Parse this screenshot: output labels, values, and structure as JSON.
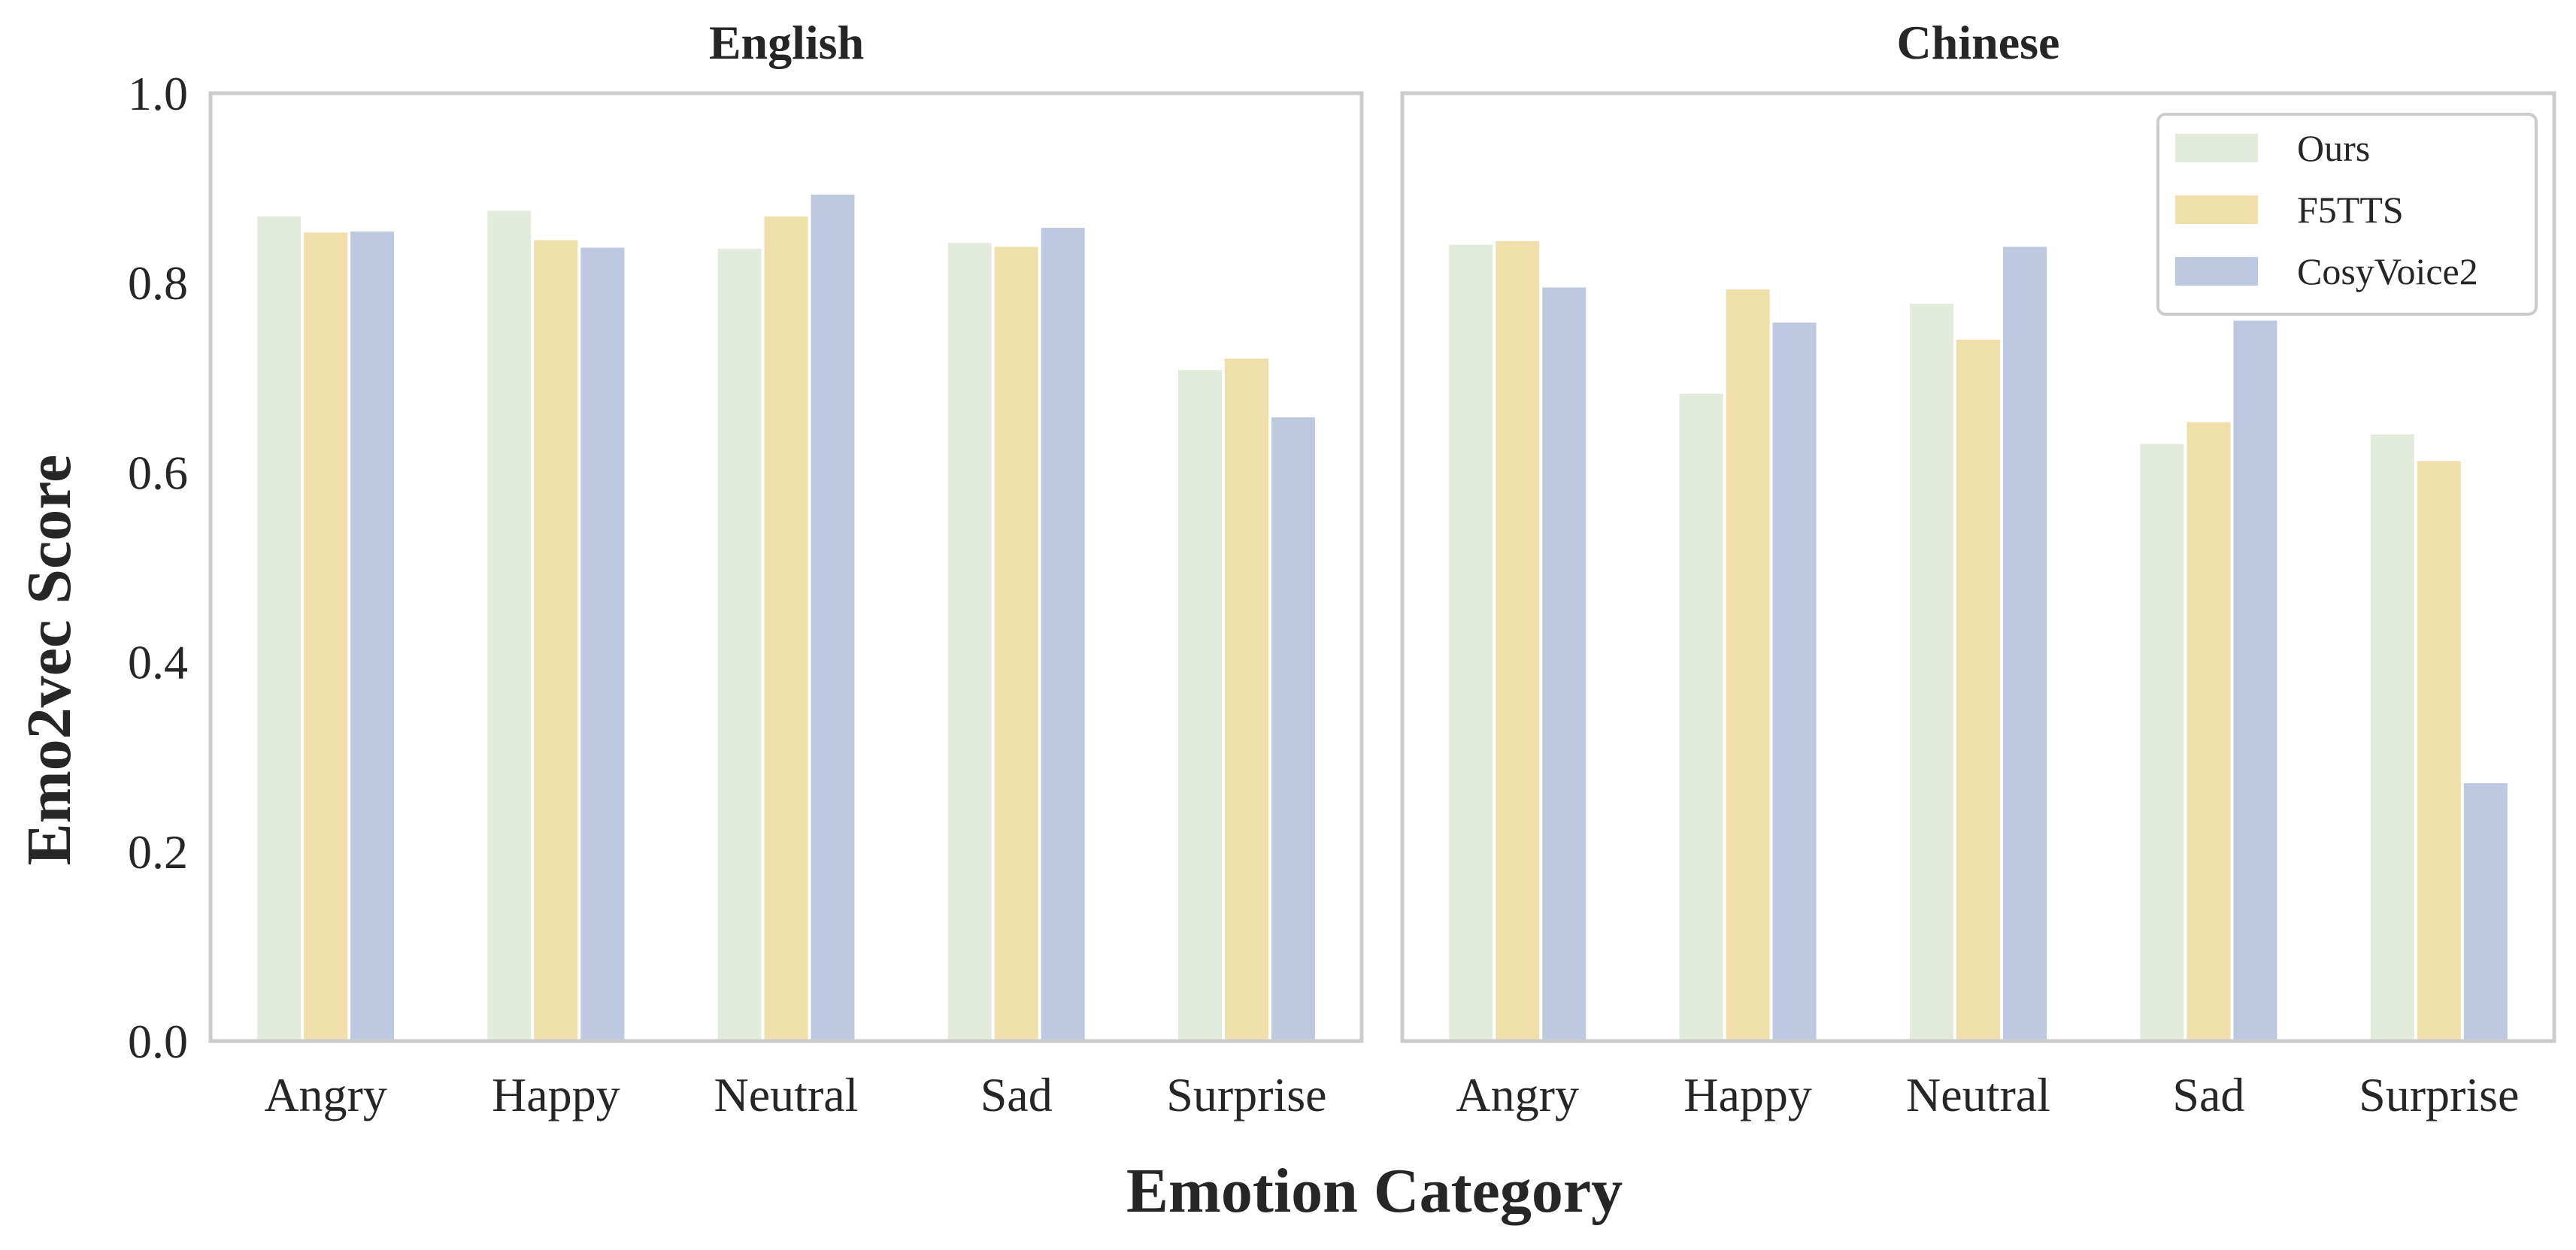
{
  "chart_data": [
    {
      "type": "bar",
      "title": "English",
      "categories": [
        "Angry",
        "Happy",
        "Neutral",
        "Sad",
        "Surprise"
      ],
      "series": [
        {
          "name": "Ours",
          "values": [
            0.87,
            0.876,
            0.836,
            0.842,
            0.708
          ]
        },
        {
          "name": "F5TTS",
          "values": [
            0.853,
            0.845,
            0.87,
            0.838,
            0.72
          ]
        },
        {
          "name": "CosyVoice2",
          "values": [
            0.854,
            0.837,
            0.893,
            0.858,
            0.658
          ]
        }
      ],
      "xlabel": "Emotion Category",
      "ylabel": "Emo2vec Score",
      "ylim": [
        0,
        1.0
      ],
      "yticks": [
        "0.0",
        "0.2",
        "0.4",
        "0.6",
        "0.8",
        "1.0"
      ],
      "grid": false
    },
    {
      "type": "bar",
      "title": "Chinese",
      "categories": [
        "Angry",
        "Happy",
        "Neutral",
        "Sad",
        "Surprise"
      ],
      "series": [
        {
          "name": "Ours",
          "values": [
            0.84,
            0.683,
            0.778,
            0.63,
            0.64
          ]
        },
        {
          "name": "F5TTS",
          "values": [
            0.844,
            0.793,
            0.74,
            0.653,
            0.612
          ]
        },
        {
          "name": "CosyVoice2",
          "values": [
            0.795,
            0.758,
            0.838,
            0.76,
            0.272
          ]
        }
      ],
      "ylim": [
        0,
        1.0
      ],
      "grid": false,
      "legend": "top-right"
    }
  ],
  "shared": {
    "xlabel": "Emotion Category",
    "ylabel": "Emo2vec Score"
  },
  "legend": {
    "placement": "top-right",
    "entries": [
      "Ours",
      "F5TTS",
      "CosyVoice2"
    ]
  },
  "colors": {
    "Ours": "#e2ebdc",
    "F5TTS": "#f0dfab",
    "CosyVoice2": "#bec8e0",
    "frame": "#cccccc",
    "text": "#262626"
  }
}
